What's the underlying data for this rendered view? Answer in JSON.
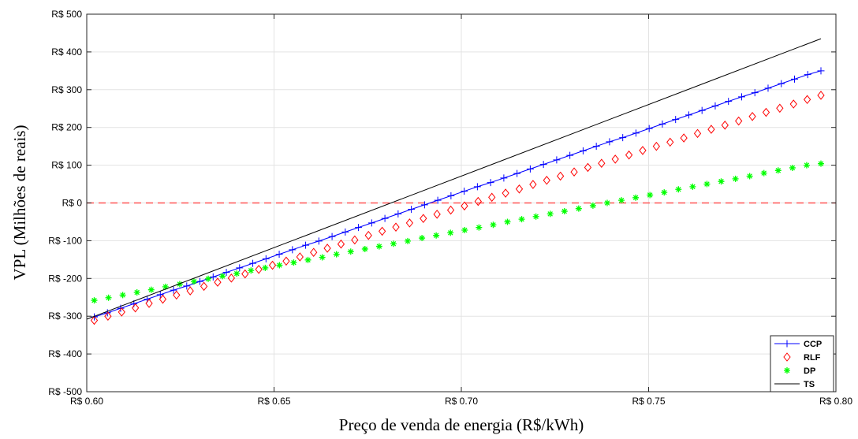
{
  "chart_data": {
    "type": "line",
    "title": "",
    "xlabel": "Preço de venda de energia (R$/kWh)",
    "ylabel": "VPL (Milhões de reais)",
    "xlim": [
      0.6,
      0.8
    ],
    "ylim": [
      -500,
      500
    ],
    "x_ticks": [
      0.6,
      0.65,
      0.7,
      0.75,
      0.8
    ],
    "x_tick_labels": [
      "R$ 0.60",
      "R$ 0.65",
      "R$ 0.70",
      "R$ 0.75",
      "R$ 0.80"
    ],
    "y_ticks": [
      -500,
      -400,
      -300,
      -200,
      -100,
      0,
      100,
      200,
      300,
      400,
      500
    ],
    "y_tick_labels": [
      "R$ -500",
      "R$ -400",
      "R$ -300",
      "R$ -200",
      "R$ -100",
      "R$ 0",
      "R$ 100",
      "R$ 200",
      "R$ 300",
      "R$ 400",
      "R$ 500"
    ],
    "grid": true,
    "legend_position": "bottom-right",
    "reference_line": {
      "y": 0,
      "color": "#ff5555",
      "style": "dashed"
    },
    "series": [
      {
        "name": "CCP",
        "color": "#0000ff",
        "marker": "plus",
        "line": true,
        "x_start": 0.602,
        "x_end": 0.796,
        "values": [
          -302,
          -291,
          -279,
          -267,
          -255,
          -243,
          -231,
          -220,
          -208,
          -196,
          -184,
          -172,
          -160,
          -148,
          -136,
          -124,
          -112,
          -101,
          -89,
          -77,
          -65,
          -53,
          -41,
          -29,
          -17,
          -5,
          7,
          19,
          31,
          43,
          54,
          66,
          78,
          90,
          102,
          114,
          126,
          138,
          150,
          162,
          173,
          185,
          197,
          209,
          221,
          233,
          245,
          257,
          269,
          281,
          292,
          304,
          316,
          328,
          340,
          350
        ]
      },
      {
        "name": "RLF",
        "color": "#ff0000",
        "marker": "diamond",
        "line": false,
        "x_start": 0.602,
        "x_end": 0.796,
        "values": [
          -311,
          -300,
          -289,
          -278,
          -266,
          -255,
          -244,
          -233,
          -221,
          -210,
          -199,
          -188,
          -176,
          -165,
          -154,
          -143,
          -131,
          -120,
          -109,
          -98,
          -86,
          -75,
          -64,
          -53,
          -41,
          -30,
          -19,
          -8,
          4,
          15,
          26,
          37,
          49,
          60,
          71,
          82,
          94,
          105,
          116,
          127,
          139,
          150,
          161,
          172,
          184,
          195,
          206,
          217,
          229,
          240,
          251,
          262,
          274,
          285
        ]
      },
      {
        "name": "DP",
        "color": "#00ff00",
        "marker": "asterisk",
        "line": false,
        "x_start": 0.602,
        "x_end": 0.796,
        "values": [
          -258,
          -251,
          -244,
          -237,
          -230,
          -222,
          -215,
          -208,
          -201,
          -194,
          -187,
          -179,
          -172,
          -165,
          -158,
          -151,
          -144,
          -136,
          -129,
          -122,
          -115,
          -108,
          -101,
          -93,
          -86,
          -79,
          -72,
          -65,
          -58,
          -50,
          -43,
          -36,
          -29,
          -22,
          -15,
          -7,
          0,
          7,
          14,
          21,
          28,
          36,
          43,
          50,
          57,
          64,
          71,
          79,
          86,
          93,
          100,
          104
        ]
      },
      {
        "name": "TS",
        "color": "#000000",
        "marker": "none",
        "line": true,
        "x_start": 0.6,
        "x_end": 0.796,
        "values": [
          -308,
          435
        ]
      }
    ]
  }
}
